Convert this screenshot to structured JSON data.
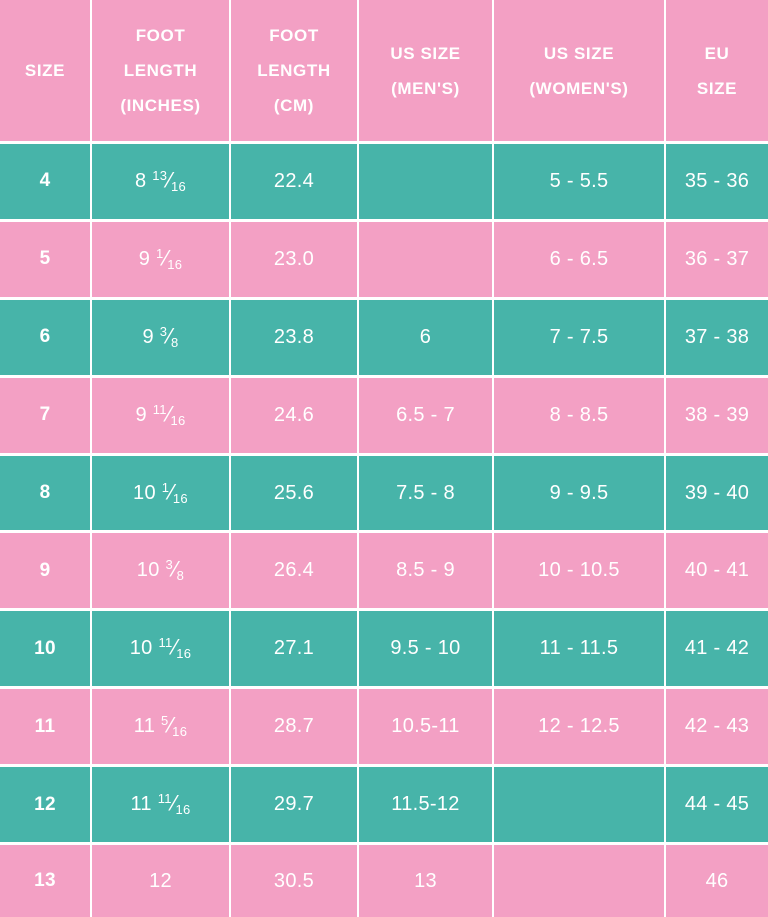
{
  "colors": {
    "pink": "#F3A0C4",
    "teal": "#47B4A9",
    "text": "#FFFFFF",
    "gridline": "#FFFFFF"
  },
  "fraction_slash": "⁄",
  "table": {
    "headers": [
      {
        "label": "SIZE",
        "lines": [
          "SIZE"
        ]
      },
      {
        "label": "FOOT LENGTH (INCHES)",
        "lines": [
          "FOOT",
          "LENGTH",
          "(INCHES)"
        ]
      },
      {
        "label": "FOOT LENGTH (CM)",
        "lines": [
          "FOOT",
          "LENGTH",
          "(CM)"
        ]
      },
      {
        "label": "US SIZE (MEN'S)",
        "lines": [
          "US SIZE",
          "(MEN'S)"
        ]
      },
      {
        "label": "US SIZE (WOMEN'S)",
        "lines": [
          "US SIZE",
          "(WOMEN'S)"
        ]
      },
      {
        "label": "EU SIZE",
        "lines": [
          "EU",
          "SIZE"
        ]
      }
    ],
    "rows": [
      {
        "size": "4",
        "inches": {
          "whole": "8",
          "num": "13",
          "den": "16"
        },
        "cm": "22.4",
        "us_mens": "",
        "us_womens": "5 - 5.5",
        "eu": "35 - 36"
      },
      {
        "size": "5",
        "inches": {
          "whole": "9",
          "num": "1",
          "den": "16"
        },
        "cm": "23.0",
        "us_mens": "",
        "us_womens": "6 - 6.5",
        "eu": "36 - 37"
      },
      {
        "size": "6",
        "inches": {
          "whole": "9",
          "num": "3",
          "den": "8"
        },
        "cm": "23.8",
        "us_mens": "6",
        "us_womens": "7 - 7.5",
        "eu": "37 - 38"
      },
      {
        "size": "7",
        "inches": {
          "whole": "9",
          "num": "11",
          "den": "16"
        },
        "cm": "24.6",
        "us_mens": "6.5 - 7",
        "us_womens": "8 - 8.5",
        "eu": "38 - 39"
      },
      {
        "size": "8",
        "inches": {
          "whole": "10",
          "num": "1",
          "den": "16"
        },
        "cm": "25.6",
        "us_mens": "7.5 - 8",
        "us_womens": "9 - 9.5",
        "eu": "39 - 40"
      },
      {
        "size": "9",
        "inches": {
          "whole": "10",
          "num": "3",
          "den": "8"
        },
        "cm": "26.4",
        "us_mens": "8.5 - 9",
        "us_womens": "10 - 10.5",
        "eu": "40 - 41"
      },
      {
        "size": "10",
        "inches": {
          "whole": "10",
          "num": "11",
          "den": "16"
        },
        "cm": "27.1",
        "us_mens": "9.5 - 10",
        "us_womens": "11 - 11.5",
        "eu": "41 - 42"
      },
      {
        "size": "11",
        "inches": {
          "whole": "11",
          "num": "5",
          "den": "16"
        },
        "cm": "28.7",
        "us_mens": "10.5-11",
        "us_womens": "12 - 12.5",
        "eu": "42 - 43"
      },
      {
        "size": "12",
        "inches": {
          "whole": "11",
          "num": "11",
          "den": "16"
        },
        "cm": "29.7",
        "us_mens": "11.5-12",
        "us_womens": "",
        "eu": "44 - 45"
      },
      {
        "size": "13",
        "inches": {
          "whole": "12",
          "num": "",
          "den": ""
        },
        "cm": "30.5",
        "us_mens": "13",
        "us_womens": "",
        "eu": "46"
      }
    ]
  },
  "chart_data": {
    "type": "table",
    "columns": [
      "SIZE",
      "FOOT LENGTH (INCHES)",
      "FOOT LENGTH (CM)",
      "US SIZE (MEN'S)",
      "US SIZE (WOMEN'S)",
      "EU SIZE"
    ],
    "rows": [
      [
        "4",
        "8 13/16",
        "22.4",
        "",
        "5 - 5.5",
        "35 - 36"
      ],
      [
        "5",
        "9 1/16",
        "23.0",
        "",
        "6 - 6.5",
        "36 - 37"
      ],
      [
        "6",
        "9 3/8",
        "23.8",
        "6",
        "7 - 7.5",
        "37 - 38"
      ],
      [
        "7",
        "9 11/16",
        "24.6",
        "6.5 - 7",
        "8 - 8.5",
        "38 - 39"
      ],
      [
        "8",
        "10 1/16",
        "25.6",
        "7.5 - 8",
        "9 - 9.5",
        "39 - 40"
      ],
      [
        "9",
        "10 3/8",
        "26.4",
        "8.5 - 9",
        "10 - 10.5",
        "40 - 41"
      ],
      [
        "10",
        "10 11/16",
        "27.1",
        "9.5 - 10",
        "11 - 11.5",
        "41 - 42"
      ],
      [
        "11",
        "11 5/16",
        "28.7",
        "10.5-11",
        "12 - 12.5",
        "42 - 43"
      ],
      [
        "12",
        "11 11/16",
        "29.7",
        "11.5-12",
        "",
        "44 - 45"
      ],
      [
        "13",
        "12",
        "30.5",
        "13",
        "",
        "46"
      ]
    ],
    "row_theme_alternation": [
      "teal",
      "pink"
    ],
    "grid": true,
    "legend_position": "none"
  }
}
